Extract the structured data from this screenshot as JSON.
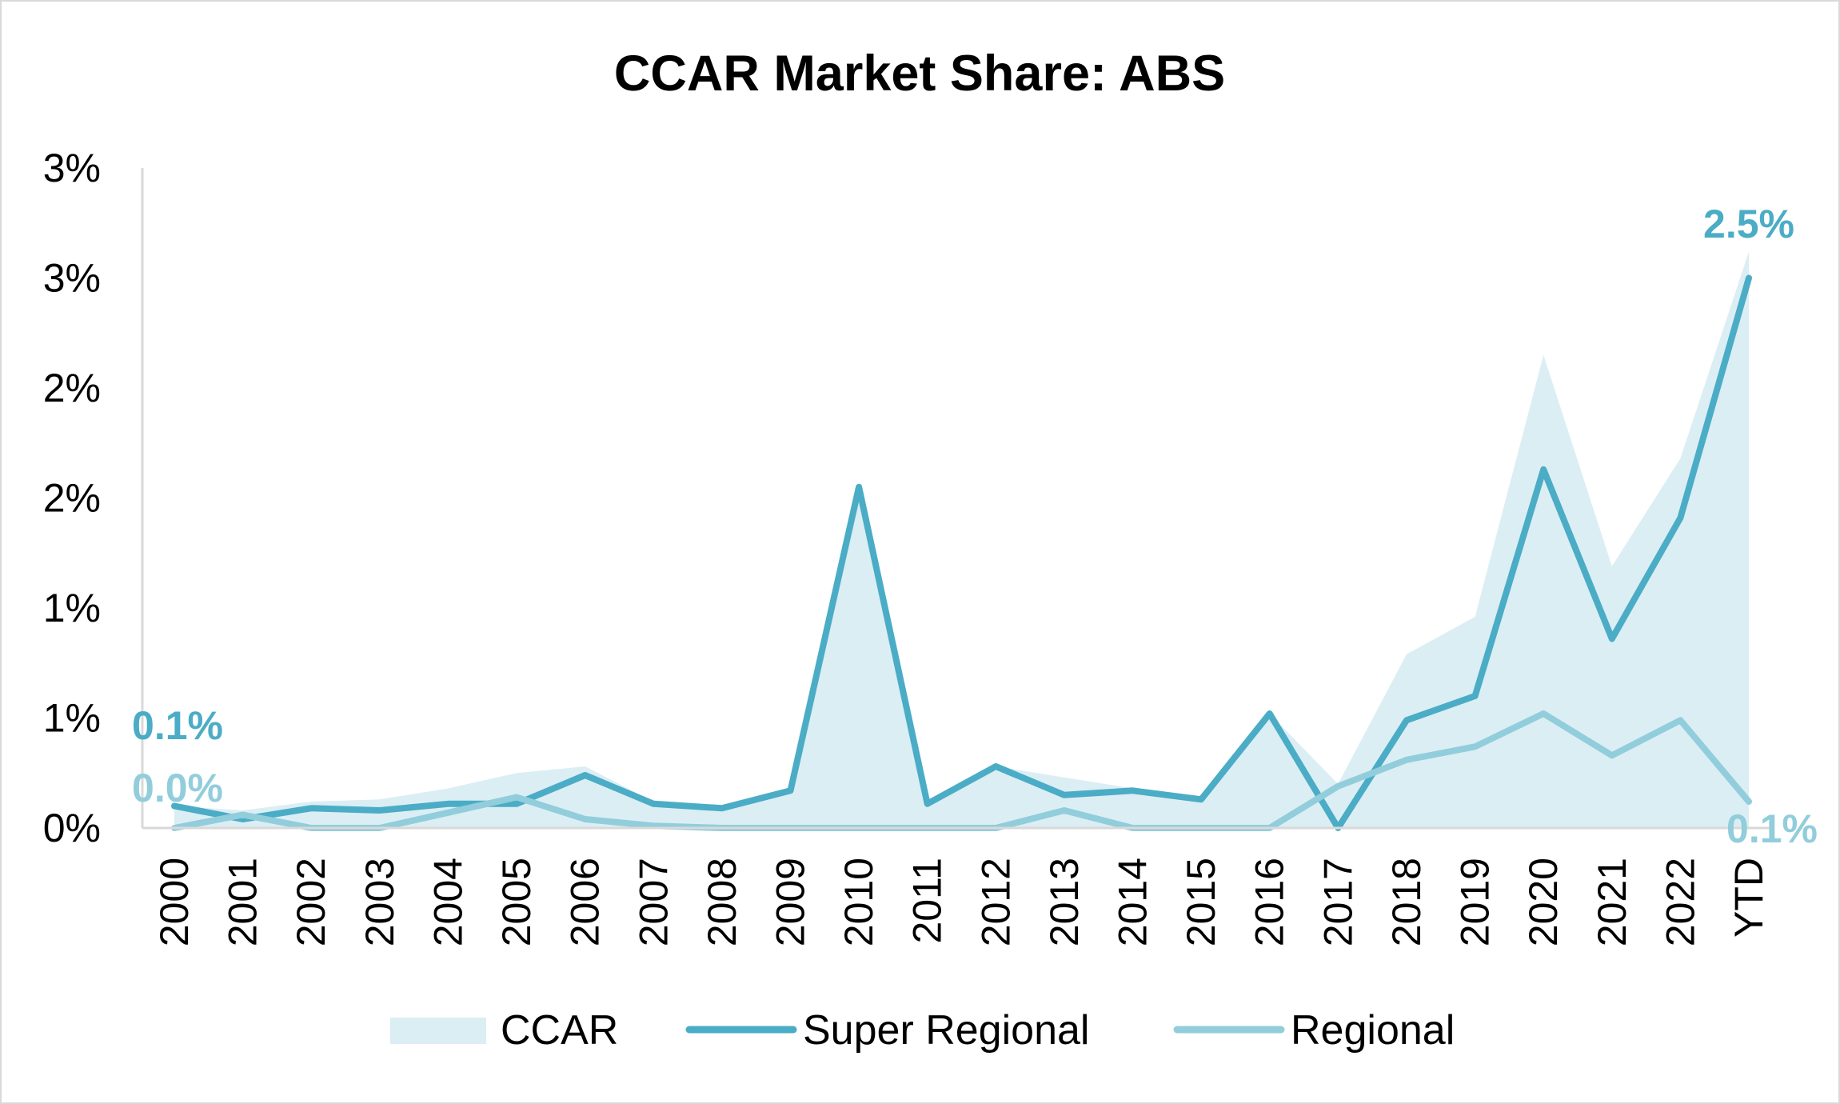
{
  "chart_data": {
    "type": "line",
    "title": "CCAR Market Share: ABS",
    "categories": [
      "2000",
      "2001",
      "2002",
      "2003",
      "2004",
      "2005",
      "2006",
      "2007",
      "2008",
      "2009",
      "2010",
      "2011",
      "2012",
      "2013",
      "2014",
      "2015",
      "2016",
      "2017",
      "2018",
      "2019",
      "2020",
      "2021",
      "2022",
      "YTD"
    ],
    "y_tick_labels": [
      "0%",
      "1%",
      "1%",
      "2%",
      "2%",
      "3%",
      "3%"
    ],
    "ylim": [
      0,
      3.0
    ],
    "xlabel": "",
    "ylabel": "",
    "grid": false,
    "legend_position": "bottom",
    "series": [
      {
        "name": "CCAR",
        "kind": "area",
        "color": "#dbeef4",
        "values": [
          0.1,
          0.08,
          0.12,
          0.13,
          0.18,
          0.25,
          0.28,
          0.12,
          0.1,
          0.18,
          1.55,
          0.12,
          0.28,
          0.23,
          0.18,
          0.14,
          0.52,
          0.2,
          0.79,
          0.96,
          2.15,
          1.19,
          1.68,
          2.62
        ]
      },
      {
        "name": "Super Regional",
        "kind": "line",
        "color": "#4bacc6",
        "values": [
          0.1,
          0.04,
          0.09,
          0.08,
          0.11,
          0.11,
          0.24,
          0.11,
          0.09,
          0.17,
          1.55,
          0.11,
          0.28,
          0.15,
          0.17,
          0.13,
          0.52,
          0.0,
          0.49,
          0.6,
          1.63,
          0.86,
          1.41,
          2.5
        ]
      },
      {
        "name": "Regional",
        "kind": "line",
        "color": "#92cddc",
        "values": [
          0.0,
          0.06,
          0.0,
          0.0,
          0.07,
          0.14,
          0.04,
          0.01,
          0.0,
          0.0,
          0.0,
          0.0,
          0.0,
          0.08,
          0.0,
          0.0,
          0.0,
          0.19,
          0.31,
          0.37,
          0.52,
          0.33,
          0.49,
          0.12
        ]
      }
    ],
    "data_labels": [
      {
        "series": "Super Regional",
        "category": "2000",
        "text": "0.1%",
        "color": "#4bacc6"
      },
      {
        "series": "Regional",
        "category": "2000",
        "text": "0.0%",
        "color": "#92cddc"
      },
      {
        "series": "Super Regional",
        "category": "YTD",
        "text": "2.5%",
        "color": "#4bacc6"
      },
      {
        "series": "Regional",
        "category": "YTD",
        "text": "0.1%",
        "color": "#92cddc"
      }
    ],
    "axis_color": "#d9d9d9"
  }
}
